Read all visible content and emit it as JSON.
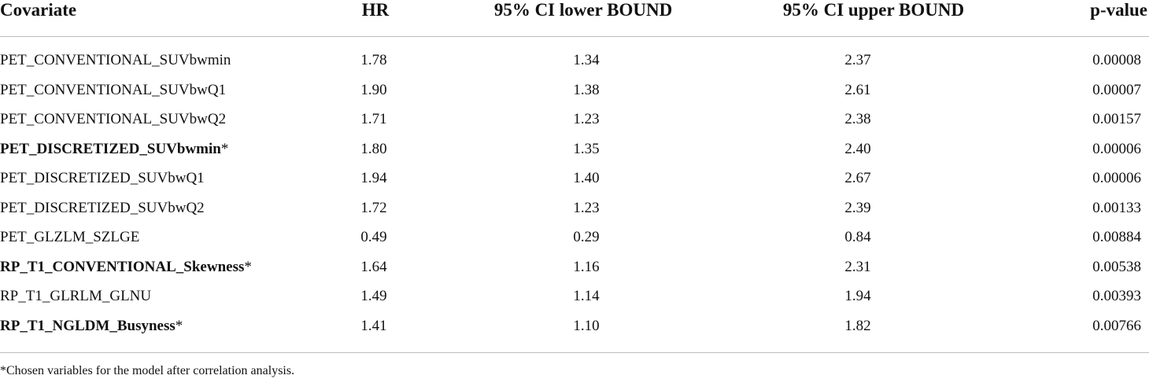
{
  "table": {
    "header": [
      "Covariate",
      "HR",
      "95% CI lower BOUND",
      "95% CI upper BOUND",
      "p-value"
    ],
    "rows": [
      {
        "name": "PET_CONVENTIONAL_SUVbwmin",
        "bold": false,
        "cells": [
          "1.78",
          "1.34",
          "2.37",
          "0.00008"
        ]
      },
      {
        "name": "PET_CONVENTIONAL_SUVbwQ1",
        "bold": false,
        "cells": [
          "1.90",
          "1.38",
          "2.61",
          "0.00007"
        ]
      },
      {
        "name": "PET_CONVENTIONAL_SUVbwQ2",
        "bold": false,
        "cells": [
          "1.71",
          "1.23",
          "2.38",
          "0.00157"
        ]
      },
      {
        "name": "PET_DISCRETIZED_SUVbwmin",
        "marker": "*",
        "bold": true,
        "cells": [
          "1.80",
          "1.35",
          "2.40",
          "0.00006"
        ]
      },
      {
        "name": "PET_DISCRETIZED_SUVbwQ1",
        "bold": false,
        "cells": [
          "1.94",
          "1.40",
          "2.67",
          "0.00006"
        ]
      },
      {
        "name": "PET_DISCRETIZED_SUVbwQ2",
        "bold": false,
        "cells": [
          "1.72",
          "1.23",
          "2.39",
          "0.00133"
        ]
      },
      {
        "name": "PET_GLZLM_SZLGE",
        "bold": false,
        "cells": [
          "0.49",
          "0.29",
          "0.84",
          "0.00884"
        ]
      },
      {
        "name": "RP_T1_CONVENTIONAL_Skewness",
        "marker": "*",
        "bold": true,
        "cells": [
          "1.64",
          "1.16",
          "2.31",
          "0.00538"
        ]
      },
      {
        "name": "RP_T1_GLRLM_GLNU",
        "bold": false,
        "cells": [
          "1.49",
          "1.14",
          "1.94",
          "0.00393"
        ]
      },
      {
        "name": "RP_T1_NGLDM_Busyness",
        "marker": "*",
        "bold": true,
        "cells": [
          "1.41",
          "1.10",
          "1.82",
          "0.00766"
        ]
      }
    ],
    "footnote": "*Chosen variables for the model after correlation analysis."
  }
}
